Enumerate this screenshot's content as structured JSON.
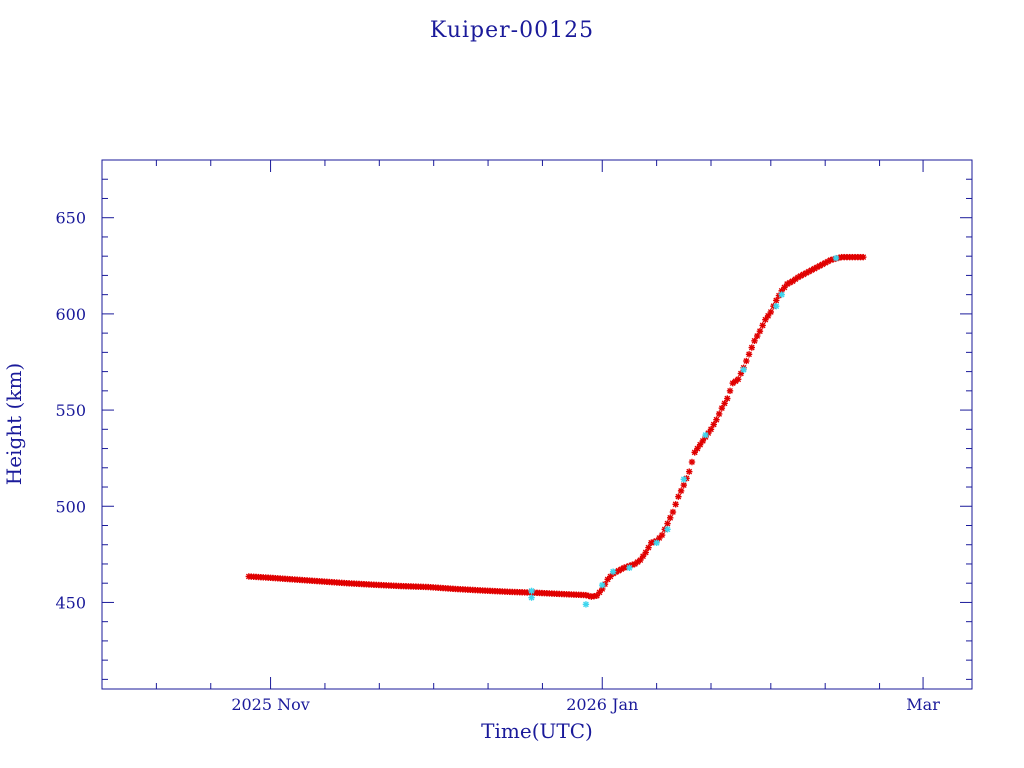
{
  "chart_data": {
    "type": "scatter",
    "title": "Kuiper-00125",
    "xlabel": "Time(UTC)",
    "ylabel": "Height (km)",
    "x_unit": "date",
    "xlim": [
      "2025-10-01",
      "2026-03-10"
    ],
    "ylim": [
      405,
      680
    ],
    "x_major_ticks": [
      {
        "date": "2025-11-01",
        "label": "2025 Nov"
      },
      {
        "date": "2026-01-01",
        "label": "2026 Jan"
      },
      {
        "date": "2026-03-01",
        "label": "Mar"
      }
    ],
    "x_minor_ticks": [
      "2025-10-01",
      "2025-10-11",
      "2025-10-21",
      "2025-11-11",
      "2025-11-21",
      "2025-12-01",
      "2025-12-11",
      "2025-12-21",
      "2026-01-11",
      "2026-01-21",
      "2026-02-01",
      "2026-02-11",
      "2026-02-21"
    ],
    "y_major_ticks": [
      450,
      500,
      550,
      600,
      650
    ],
    "y_minor_step": 10,
    "grid": false,
    "legend": "none",
    "series": [
      {
        "color": "#e00000",
        "marker": "asterisk",
        "points": [
          [
            "2025-10-28",
            463.5
          ],
          [
            "2025-11-01",
            462.8
          ],
          [
            "2025-11-05",
            462.0
          ],
          [
            "2025-11-10",
            461.0
          ],
          [
            "2025-11-15",
            460.0
          ],
          [
            "2025-11-20",
            459.2
          ],
          [
            "2025-11-25",
            458.5
          ],
          [
            "2025-11-30",
            458.0
          ],
          [
            "2025-12-05",
            457.0
          ],
          [
            "2025-12-10",
            456.2
          ],
          [
            "2025-12-15",
            455.5
          ],
          [
            "2025-12-20",
            455.0
          ],
          [
            "2025-12-25",
            454.3
          ],
          [
            "2025-12-29",
            453.8
          ],
          [
            "2025-12-30",
            453.0
          ],
          [
            "2025-12-31",
            453.5
          ],
          [
            "2026-01-01",
            457.0
          ],
          [
            "2026-01-02",
            462.0
          ],
          [
            "2026-01-03",
            465.0
          ],
          [
            "2026-01-04",
            466.5
          ],
          [
            "2026-01-05",
            468.0
          ],
          [
            "2026-01-06",
            469.0
          ],
          [
            "2026-01-07",
            470.0
          ],
          [
            "2026-01-08",
            472.0
          ],
          [
            "2026-01-09",
            476.0
          ],
          [
            "2026-01-10",
            481.0
          ],
          [
            "2026-01-11",
            482.0
          ],
          [
            "2026-01-12",
            485.0
          ],
          [
            "2026-01-13",
            491.0
          ],
          [
            "2026-01-14",
            497.0
          ],
          [
            "2026-01-15",
            505.0
          ],
          [
            "2026-01-16",
            511.0
          ],
          [
            "2026-01-17",
            518.0
          ],
          [
            "2026-01-18",
            528.0
          ],
          [
            "2026-01-19",
            532.0
          ],
          [
            "2026-01-20",
            536.0
          ],
          [
            "2026-01-21",
            540.0
          ],
          [
            "2026-01-22",
            545.0
          ],
          [
            "2026-01-23",
            551.0
          ],
          [
            "2026-01-24",
            556.0
          ],
          [
            "2026-01-25",
            564.0
          ],
          [
            "2026-01-26",
            566.0
          ],
          [
            "2026-01-27",
            572.0
          ],
          [
            "2026-01-28",
            579.0
          ],
          [
            "2026-01-29",
            586.0
          ],
          [
            "2026-01-30",
            591.0
          ],
          [
            "2026-01-31",
            597.0
          ],
          [
            "2026-02-01",
            601.0
          ],
          [
            "2026-02-02",
            607.0
          ],
          [
            "2026-02-03",
            612.0
          ],
          [
            "2026-02-04",
            615.5
          ],
          [
            "2026-02-05",
            617.0
          ],
          [
            "2026-02-06",
            619.0
          ],
          [
            "2026-02-08",
            622.0
          ],
          [
            "2026-02-10",
            625.0
          ],
          [
            "2026-02-12",
            628.0
          ],
          [
            "2026-02-14",
            629.5
          ],
          [
            "2026-02-16",
            629.5
          ],
          [
            "2026-02-18",
            629.5
          ]
        ]
      },
      {
        "color": "#3fd6ee",
        "marker": "asterisk",
        "points": [
          [
            "2025-12-19",
            456.0
          ],
          [
            "2025-12-19",
            452.5
          ],
          [
            "2025-12-29",
            449.0
          ],
          [
            "2026-01-01",
            459.0
          ],
          [
            "2026-01-03",
            466.0
          ],
          [
            "2026-01-06",
            468.0
          ],
          [
            "2026-01-11",
            481.0
          ],
          [
            "2026-01-13",
            488.0
          ],
          [
            "2026-01-16",
            514.0
          ],
          [
            "2026-01-20",
            537.0
          ],
          [
            "2026-01-27",
            571.0
          ],
          [
            "2026-02-02",
            604.0
          ],
          [
            "2026-02-03",
            610.0
          ],
          [
            "2026-02-13",
            629.0
          ]
        ]
      }
    ]
  }
}
